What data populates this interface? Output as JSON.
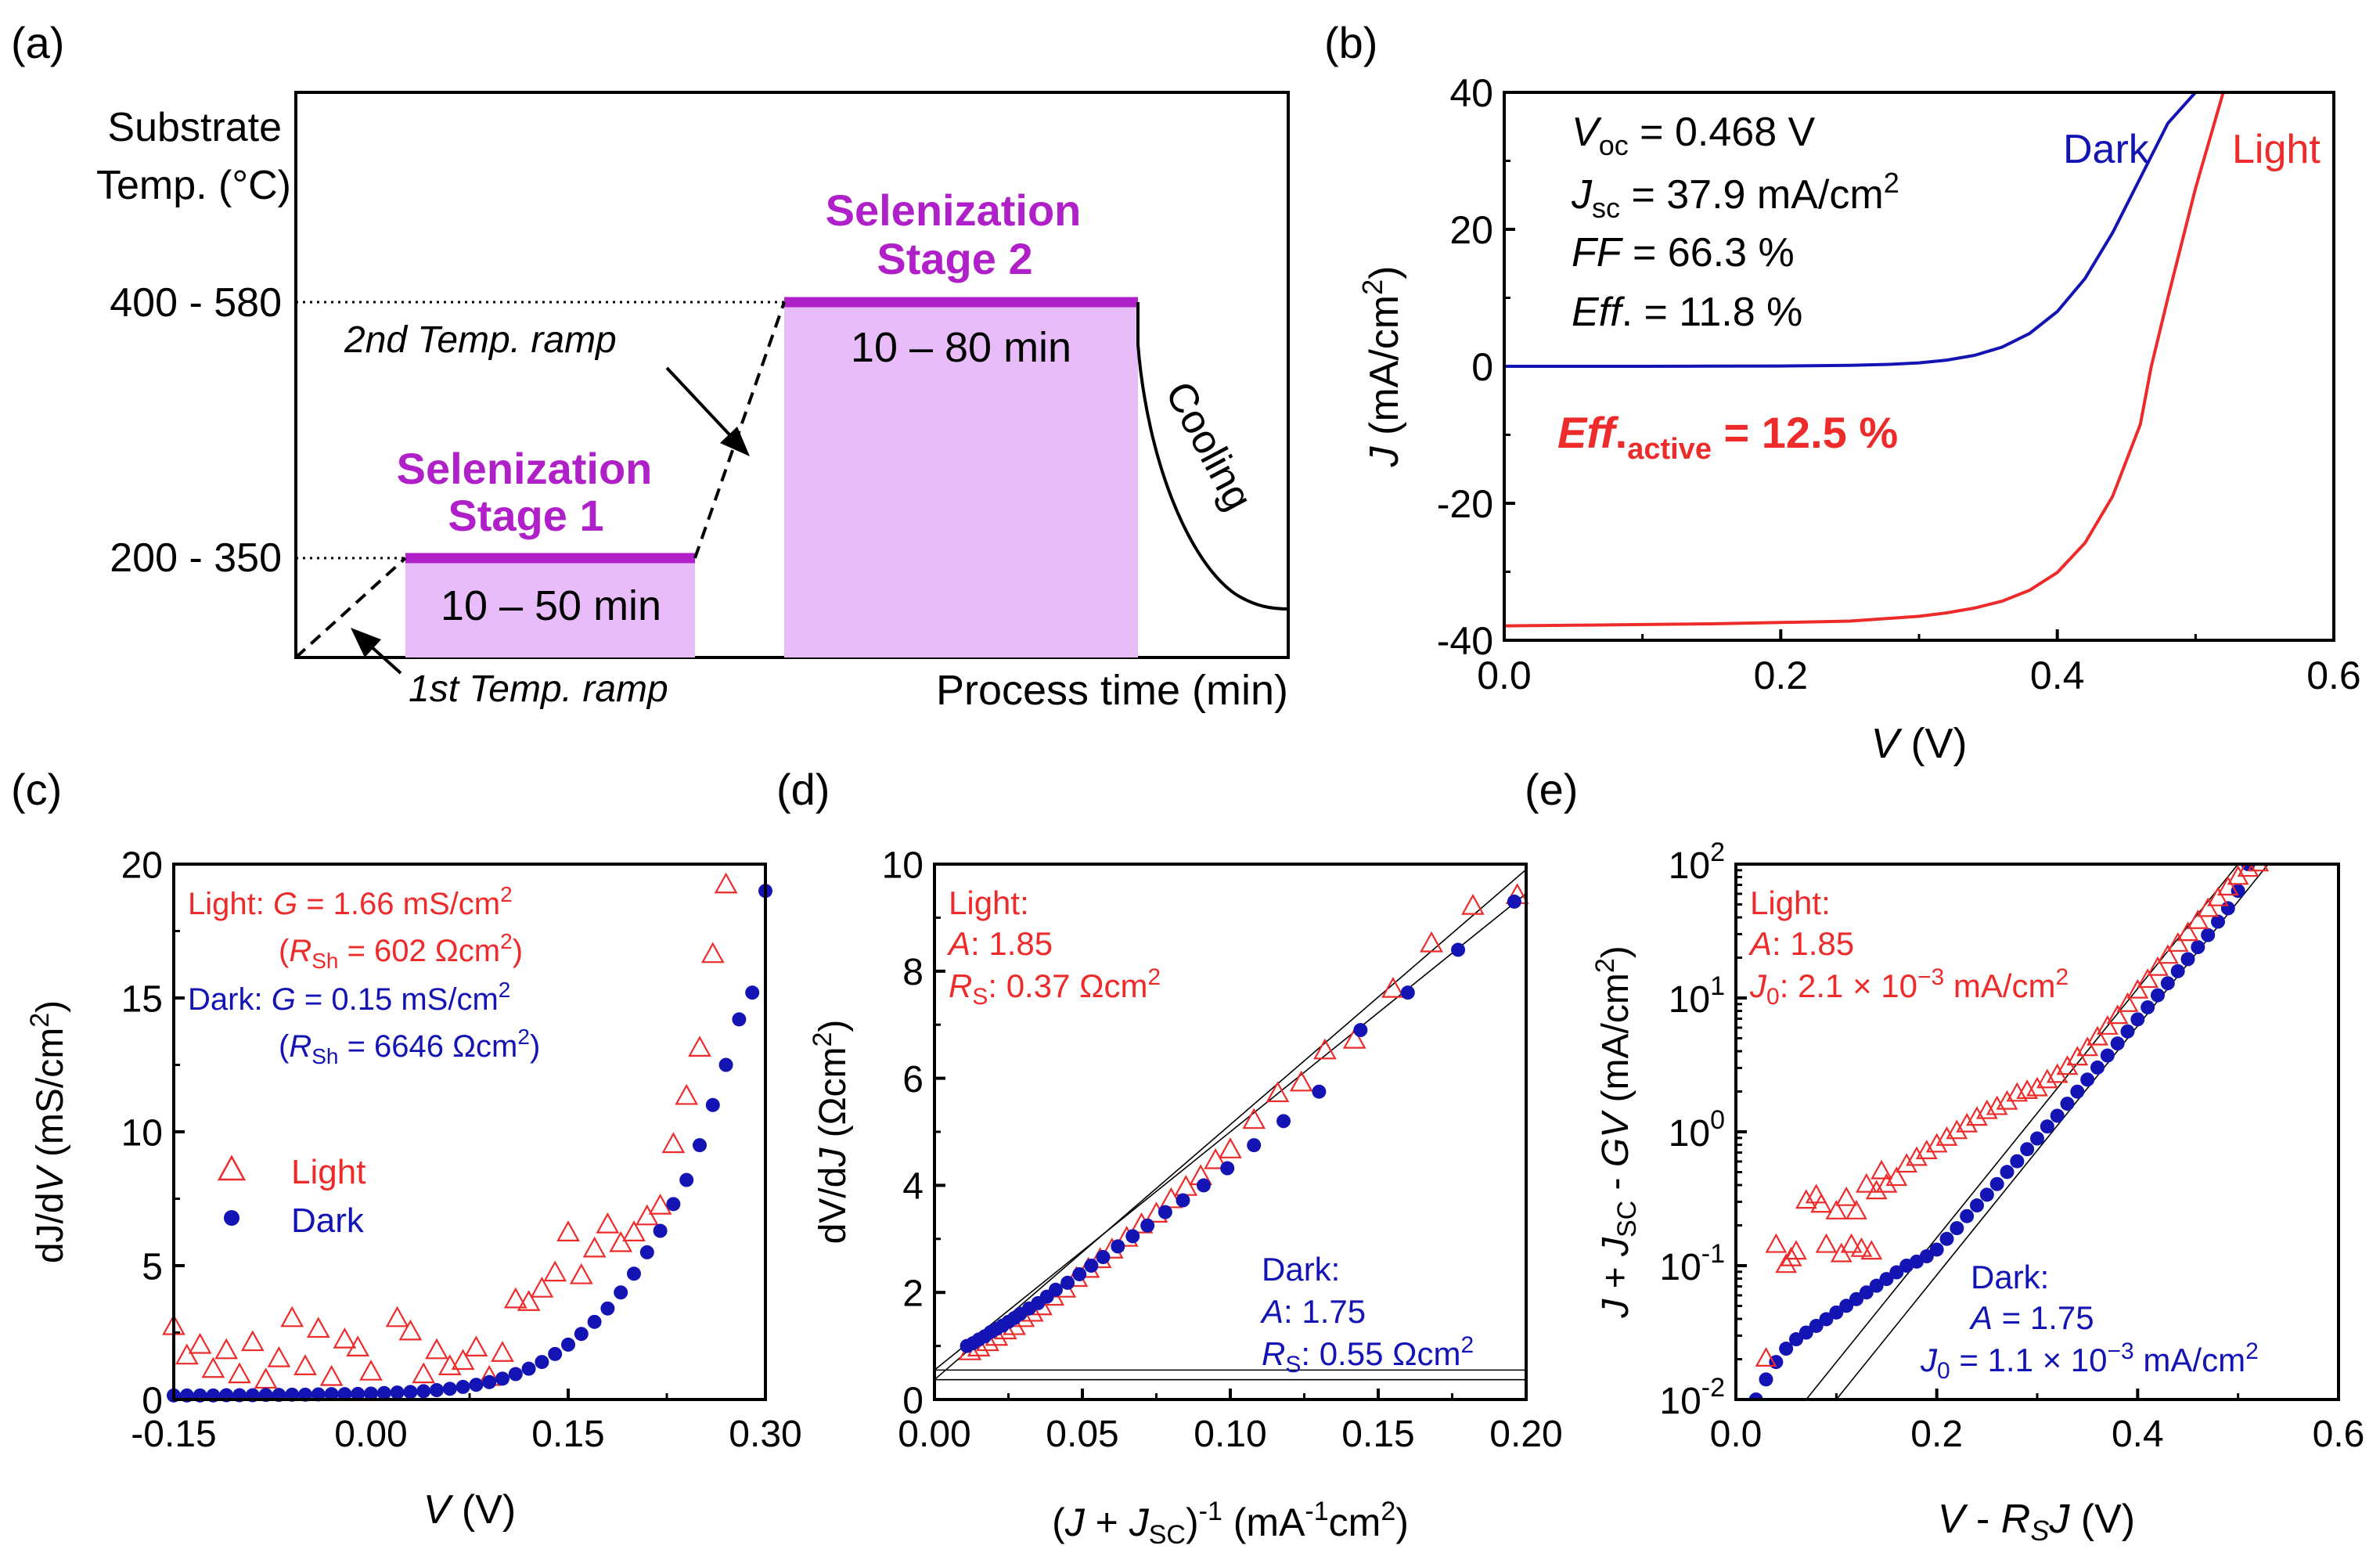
{
  "figure": {
    "panel_labels": [
      "(a)",
      "(b)",
      "(c)",
      "(d)",
      "(e)"
    ]
  },
  "colors": {
    "light": "#ee2b2b",
    "dark": "#1414b4",
    "magenta": "#b020c8",
    "stage_fill": "#e8bcf8",
    "text": "#000000"
  },
  "chart_data": [
    {
      "panel": "(a)",
      "type": "diagram",
      "ylabel_line1": "Substrate",
      "ylabel_line2": "Temp. (°C)",
      "xlabel": "Process time (min)",
      "y_levels": [
        "400 - 580",
        "200 - 350"
      ],
      "stage1": {
        "title1": "Selenization",
        "title2": "Stage 1",
        "duration": "10 – 50 min"
      },
      "stage2": {
        "title1": "Selenization",
        "title2": "Stage 2",
        "duration": "10 – 80 min"
      },
      "ramp1_label": "1st Temp. ramp",
      "ramp2_label": "2nd Temp. ramp",
      "cooling_label": "Cooling"
    },
    {
      "panel": "(b)",
      "type": "line",
      "xlabel_var": "V",
      "xlabel_unit": " (V)",
      "ylabel_var": "J",
      "ylabel_unit": " (mA/cm",
      "ylabel_sup": "2",
      "ylabel_end": ")",
      "xlim": [
        0.0,
        0.6
      ],
      "ylim": [
        -40,
        40
      ],
      "xticks": [
        0.0,
        0.2,
        0.4,
        0.6
      ],
      "xtick_labels": [
        "0.0",
        "0.2",
        "0.4",
        "0.6"
      ],
      "yticks": [
        -40,
        -20,
        0,
        20,
        40
      ],
      "ytick_labels": [
        "-40",
        "-20",
        "0",
        "20",
        "40"
      ],
      "series": [
        {
          "name": "Dark",
          "color": "#1414b4",
          "x": [
            0.0,
            0.05,
            0.1,
            0.15,
            0.2,
            0.25,
            0.28,
            0.3,
            0.32,
            0.34,
            0.36,
            0.38,
            0.4,
            0.42,
            0.44,
            0.46,
            0.48,
            0.5
          ],
          "y": [
            0.0,
            0.0,
            0.0,
            0.02,
            0.05,
            0.15,
            0.3,
            0.5,
            0.9,
            1.6,
            2.8,
            4.8,
            8.0,
            12.8,
            19.5,
            27.5,
            35.5,
            40.5
          ]
        },
        {
          "name": "Light",
          "color": "#ee2b2b",
          "x": [
            0.0,
            0.05,
            0.1,
            0.15,
            0.2,
            0.25,
            0.3,
            0.32,
            0.34,
            0.36,
            0.38,
            0.4,
            0.42,
            0.44,
            0.46,
            0.468,
            0.48,
            0.5,
            0.52
          ],
          "y": [
            -37.9,
            -37.8,
            -37.7,
            -37.6,
            -37.4,
            -37.2,
            -36.5,
            -36.0,
            -35.3,
            -34.3,
            -32.7,
            -30.1,
            -25.8,
            -19.0,
            -8.5,
            0.0,
            10.0,
            26.0,
            40.5
          ]
        }
      ],
      "legend_labels": [
        "Dark",
        "Light"
      ],
      "annotations": [
        {
          "var": "V",
          "sub": "oc",
          "text": " = 0.468 V"
        },
        {
          "var": "J",
          "sub": "sc",
          "text": " = 37.9 mA/cm",
          "sup": "2"
        },
        {
          "var": "FF",
          "text": " = 66.3 %"
        },
        {
          "var": "Eff",
          "text": ". = 11.8 %"
        }
      ],
      "highlight": {
        "var": "Eff",
        "dot": ".",
        "sub": "active",
        "text": " = 12.5 %"
      }
    },
    {
      "panel": "(c)",
      "type": "scatter",
      "xlabel_var": "V",
      "xlabel_unit": " (V)",
      "ylabel_a": "dJ/d",
      "ylabel_var": "V",
      "ylabel_unit": " (mS/cm",
      "ylabel_sup": "2",
      "ylabel_end": ")",
      "xlim": [
        -0.15,
        0.3
      ],
      "ylim": [
        0,
        20
      ],
      "xticks": [
        -0.15,
        0.0,
        0.15,
        0.3
      ],
      "xtick_labels": [
        "-0.15",
        "0.00",
        "0.15",
        "0.30"
      ],
      "yticks": [
        0,
        5,
        10,
        15,
        20
      ],
      "ytick_labels": [
        "0",
        "5",
        "10",
        "15",
        "20"
      ],
      "series": [
        {
          "name": "Light",
          "marker": "triangle-open",
          "color": "#ee2b2b",
          "x": [
            -0.15,
            -0.14,
            -0.13,
            -0.12,
            -0.11,
            -0.1,
            -0.09,
            -0.08,
            -0.07,
            -0.06,
            -0.05,
            -0.04,
            -0.03,
            -0.02,
            -0.01,
            0.0,
            0.02,
            0.03,
            0.04,
            0.05,
            0.06,
            0.07,
            0.08,
            0.09,
            0.1,
            0.11,
            0.12,
            0.13,
            0.14,
            0.15,
            0.16,
            0.17,
            0.18,
            0.19,
            0.2,
            0.21,
            0.22,
            0.23,
            0.24,
            0.25,
            0.26,
            0.27
          ],
          "y": [
            2.7,
            1.6,
            2.0,
            1.1,
            1.8,
            0.9,
            2.1,
            0.7,
            1.5,
            3.0,
            1.2,
            2.6,
            0.8,
            2.2,
            1.9,
            1.0,
            3.0,
            2.5,
            0.9,
            1.8,
            1.2,
            1.4,
            1.9,
            0.8,
            1.7,
            3.7,
            3.6,
            4.1,
            4.7,
            6.2,
            4.6,
            5.6,
            6.5,
            5.8,
            6.2,
            6.8,
            7.2,
            9.5,
            11.3,
            13.1,
            16.6,
            19.2
          ]
        },
        {
          "name": "Dark",
          "marker": "circle-filled",
          "color": "#1414b4",
          "x": [
            -0.15,
            -0.14,
            -0.13,
            -0.12,
            -0.11,
            -0.1,
            -0.09,
            -0.08,
            -0.07,
            -0.06,
            -0.05,
            -0.04,
            -0.03,
            -0.02,
            -0.01,
            0.0,
            0.01,
            0.02,
            0.03,
            0.04,
            0.05,
            0.06,
            0.07,
            0.08,
            0.09,
            0.1,
            0.11,
            0.12,
            0.13,
            0.14,
            0.15,
            0.16,
            0.17,
            0.18,
            0.19,
            0.2,
            0.21,
            0.22,
            0.23,
            0.24,
            0.25,
            0.26,
            0.27,
            0.28,
            0.29,
            0.3
          ],
          "y": [
            0.15,
            0.15,
            0.15,
            0.15,
            0.16,
            0.16,
            0.16,
            0.17,
            0.17,
            0.18,
            0.18,
            0.19,
            0.2,
            0.2,
            0.21,
            0.22,
            0.24,
            0.26,
            0.28,
            0.31,
            0.35,
            0.4,
            0.47,
            0.55,
            0.65,
            0.78,
            0.95,
            1.15,
            1.4,
            1.7,
            2.05,
            2.45,
            2.9,
            3.4,
            4.0,
            4.7,
            5.5,
            6.3,
            7.3,
            8.2,
            9.5,
            11.0,
            12.5,
            14.2,
            15.2,
            19.0
          ]
        }
      ],
      "legend_labels": [
        "Light",
        "Dark"
      ],
      "annotations": {
        "light_label": "Light: ",
        "light_g": " = 1.66 mS/cm",
        "light_rsh": " = 602 Ωcm",
        "dark_label": "Dark: ",
        "dark_g": " = 0.15 mS/cm",
        "dark_rsh": " = 6646 Ωcm",
        "g_var": "G",
        "r_var": "R",
        "r_sub": "Sh",
        "sup": "2"
      }
    },
    {
      "panel": "(d)",
      "type": "scatter",
      "xlabel_a": "(",
      "xlabel_var": "J",
      "xlabel_b": " + ",
      "xlabel_sub": "SC",
      "xlabel_c": ")",
      "xlabel_sup": "-1",
      "xlabel_unit": " (mA",
      "xlabel_unit_sup": "-1",
      "xlabel_unit_b": "cm",
      "xlabel_unit_sup2": "2",
      "xlabel_end": ")",
      "ylabel_a": "dV/d",
      "ylabel_var": "J",
      "ylabel_unit": " (Ωcm",
      "ylabel_sup": "2",
      "ylabel_end": ")",
      "xlim": [
        0.0,
        0.2
      ],
      "ylim": [
        0,
        10
      ],
      "xticks": [
        0.0,
        0.05,
        0.1,
        0.15,
        0.2
      ],
      "xtick_labels": [
        "0.00",
        "0.05",
        "0.10",
        "0.15",
        "0.20"
      ],
      "yticks": [
        0,
        2,
        4,
        6,
        8,
        10
      ],
      "ytick_labels": [
        "0",
        "2",
        "4",
        "6",
        "8",
        "10"
      ],
      "series": [
        {
          "name": "Light",
          "marker": "triangle-open",
          "color": "#ee2b2b",
          "x": [
            0.012,
            0.015,
            0.018,
            0.021,
            0.024,
            0.027,
            0.03,
            0.033,
            0.036,
            0.04,
            0.044,
            0.048,
            0.052,
            0.056,
            0.06,
            0.065,
            0.07,
            0.075,
            0.08,
            0.085,
            0.09,
            0.095,
            0.1,
            0.108,
            0.116,
            0.124,
            0.132,
            0.142,
            0.155,
            0.168,
            0.182,
            0.197
          ],
          "y": [
            0.88,
            0.95,
            1.05,
            1.15,
            1.27,
            1.35,
            1.5,
            1.6,
            1.72,
            1.9,
            2.05,
            2.25,
            2.42,
            2.6,
            2.78,
            3.0,
            3.25,
            3.45,
            3.72,
            3.95,
            4.15,
            4.45,
            4.65,
            5.2,
            5.7,
            5.9,
            6.5,
            6.7,
            7.65,
            8.5,
            9.2,
            9.4
          ]
        },
        {
          "name": "Dark",
          "marker": "circle-filled",
          "color": "#1414b4",
          "x": [
            0.011,
            0.013,
            0.015,
            0.017,
            0.019,
            0.021,
            0.023,
            0.025,
            0.027,
            0.029,
            0.032,
            0.035,
            0.038,
            0.041,
            0.045,
            0.049,
            0.053,
            0.057,
            0.062,
            0.067,
            0.072,
            0.078,
            0.084,
            0.091,
            0.099,
            0.108,
            0.118,
            0.13,
            0.144,
            0.16,
            0.177,
            0.196
          ],
          "y": [
            1.0,
            1.05,
            1.12,
            1.18,
            1.26,
            1.32,
            1.38,
            1.45,
            1.52,
            1.6,
            1.7,
            1.8,
            1.92,
            2.05,
            2.18,
            2.34,
            2.5,
            2.66,
            2.86,
            3.05,
            3.25,
            3.5,
            3.72,
            4.0,
            4.32,
            4.75,
            5.2,
            5.75,
            6.9,
            7.6,
            8.4,
            9.3
          ]
        }
      ],
      "fit_lines": [
        {
          "x": [
            0.0,
            0.2
          ],
          "y": [
            0.37,
            9.9
          ]
        },
        {
          "x": [
            0.0,
            0.2
          ],
          "y": [
            0.55,
            9.45
          ]
        }
      ],
      "hlines": [
        0.37,
        0.55
      ],
      "annotations": {
        "light_label": "Light:",
        "light_a_var": "A",
        "light_a": ": 1.85",
        "light_rs_var": "R",
        "light_rs_sub": "S",
        "light_rs": ": 0.37 Ωcm",
        "dark_label": "Dark:",
        "dark_a_var": "A",
        "dark_a": ": 1.75",
        "dark_rs_var": "R",
        "dark_rs_sub": "S",
        "dark_rs": ": 0.55 Ωcm",
        "sup": "2"
      }
    },
    {
      "panel": "(e)",
      "type": "scatter",
      "xlabel_var": "V",
      "xlabel_mid": " - ",
      "xlabel_var2": "R",
      "xlabel_sub": "S",
      "xlabel_var3": "J",
      "xlabel_unit": " (V)",
      "ylabel_var": "J",
      "ylabel_b": " + ",
      "ylabel_var2": "J",
      "ylabel_sub": "SC",
      "ylabel_c": " - ",
      "ylabel_var3": "GV",
      "ylabel_unit": " (mA/cm",
      "ylabel_sup": "2",
      "ylabel_end": ")",
      "yscale": "log",
      "xlim": [
        0.0,
        0.6
      ],
      "ylim_log10": [
        -2,
        2
      ],
      "xticks": [
        0.0,
        0.2,
        0.4,
        0.6
      ],
      "xtick_labels": [
        "0.0",
        "0.2",
        "0.4",
        "0.6"
      ],
      "yticks_log10": [
        -2,
        -1,
        0,
        1,
        2
      ],
      "ytick_base": "10",
      "ytick_exps": [
        "-2",
        "-1",
        "0",
        "1",
        "2"
      ],
      "series": [
        {
          "name": "Light",
          "marker": "triangle-open",
          "color": "#ee2b2b",
          "x": [
            0.03,
            0.04,
            0.05,
            0.055,
            0.06,
            0.07,
            0.08,
            0.085,
            0.09,
            0.1,
            0.105,
            0.11,
            0.115,
            0.12,
            0.125,
            0.13,
            0.135,
            0.14,
            0.145,
            0.15,
            0.16,
            0.17,
            0.18,
            0.19,
            0.2,
            0.21,
            0.22,
            0.23,
            0.24,
            0.25,
            0.26,
            0.27,
            0.28,
            0.29,
            0.3,
            0.31,
            0.32,
            0.33,
            0.34,
            0.35,
            0.36,
            0.37,
            0.38,
            0.39,
            0.4,
            0.41,
            0.42,
            0.43,
            0.44,
            0.45,
            0.46,
            0.47,
            0.48,
            0.49,
            0.5,
            0.51,
            0.52
          ],
          "log10y": [
            -1.7,
            -0.85,
            -1.0,
            -0.95,
            -0.9,
            -0.52,
            -0.48,
            -0.55,
            -0.85,
            -0.6,
            -0.92,
            -0.5,
            -0.85,
            -0.6,
            -0.88,
            -0.4,
            -0.9,
            -0.45,
            -0.3,
            -0.4,
            -0.35,
            -0.25,
            -0.2,
            -0.15,
            -0.1,
            -0.05,
            0.0,
            0.05,
            0.1,
            0.15,
            0.18,
            0.22,
            0.28,
            0.3,
            0.32,
            0.38,
            0.42,
            0.48,
            0.55,
            0.62,
            0.7,
            0.78,
            0.86,
            0.95,
            1.05,
            1.13,
            1.22,
            1.31,
            1.4,
            1.48,
            1.57,
            1.66,
            1.74,
            1.82,
            1.9,
            1.96,
            2.0
          ]
        },
        {
          "name": "Dark",
          "marker": "circle-filled",
          "color": "#1414b4",
          "x": [
            0.02,
            0.03,
            0.04,
            0.05,
            0.06,
            0.07,
            0.08,
            0.09,
            0.1,
            0.11,
            0.12,
            0.13,
            0.14,
            0.15,
            0.16,
            0.17,
            0.18,
            0.19,
            0.2,
            0.21,
            0.22,
            0.23,
            0.24,
            0.25,
            0.26,
            0.27,
            0.28,
            0.29,
            0.3,
            0.31,
            0.32,
            0.33,
            0.34,
            0.35,
            0.36,
            0.37,
            0.38,
            0.39,
            0.4,
            0.41,
            0.42,
            0.43,
            0.44,
            0.45,
            0.46,
            0.47,
            0.48,
            0.49,
            0.5,
            0.51
          ],
          "log10y": [
            -2.0,
            -1.85,
            -1.72,
            -1.62,
            -1.55,
            -1.5,
            -1.45,
            -1.4,
            -1.35,
            -1.3,
            -1.25,
            -1.2,
            -1.15,
            -1.1,
            -1.05,
            -1.0,
            -0.97,
            -0.93,
            -0.88,
            -0.8,
            -0.72,
            -0.63,
            -0.55,
            -0.47,
            -0.39,
            -0.3,
            -0.22,
            -0.13,
            -0.05,
            0.04,
            0.12,
            0.21,
            0.3,
            0.39,
            0.48,
            0.57,
            0.66,
            0.75,
            0.84,
            0.93,
            1.02,
            1.11,
            1.2,
            1.29,
            1.38,
            1.47,
            1.57,
            1.67,
            1.8,
            2.0
          ]
        }
      ],
      "fit_lines": [
        {
          "x": [
            0.07,
            0.5
          ],
          "log10y": [
            -2.0,
            2.0
          ]
        },
        {
          "x": [
            0.1,
            0.53
          ],
          "log10y": [
            -2.0,
            2.0
          ]
        }
      ],
      "annotations": {
        "light_label": "Light:",
        "light_a_var": "A",
        "light_a": ": 1.85",
        "light_j0_var": "J",
        "light_j0_sub": "0",
        "light_j0": ": 2.1 × 10",
        "light_j0_sup": "−3",
        "light_j0_unit": " mA/cm",
        "dark_label": "Dark:",
        "dark_a_var": "A",
        "dark_a": " = 1.75",
        "dark_j0_var": "J",
        "dark_j0_sub": "0",
        "dark_j0": " = 1.1 × 10",
        "dark_j0_sup": "−3",
        "dark_j0_unit": " mA/cm",
        "sup": "2"
      }
    }
  ]
}
